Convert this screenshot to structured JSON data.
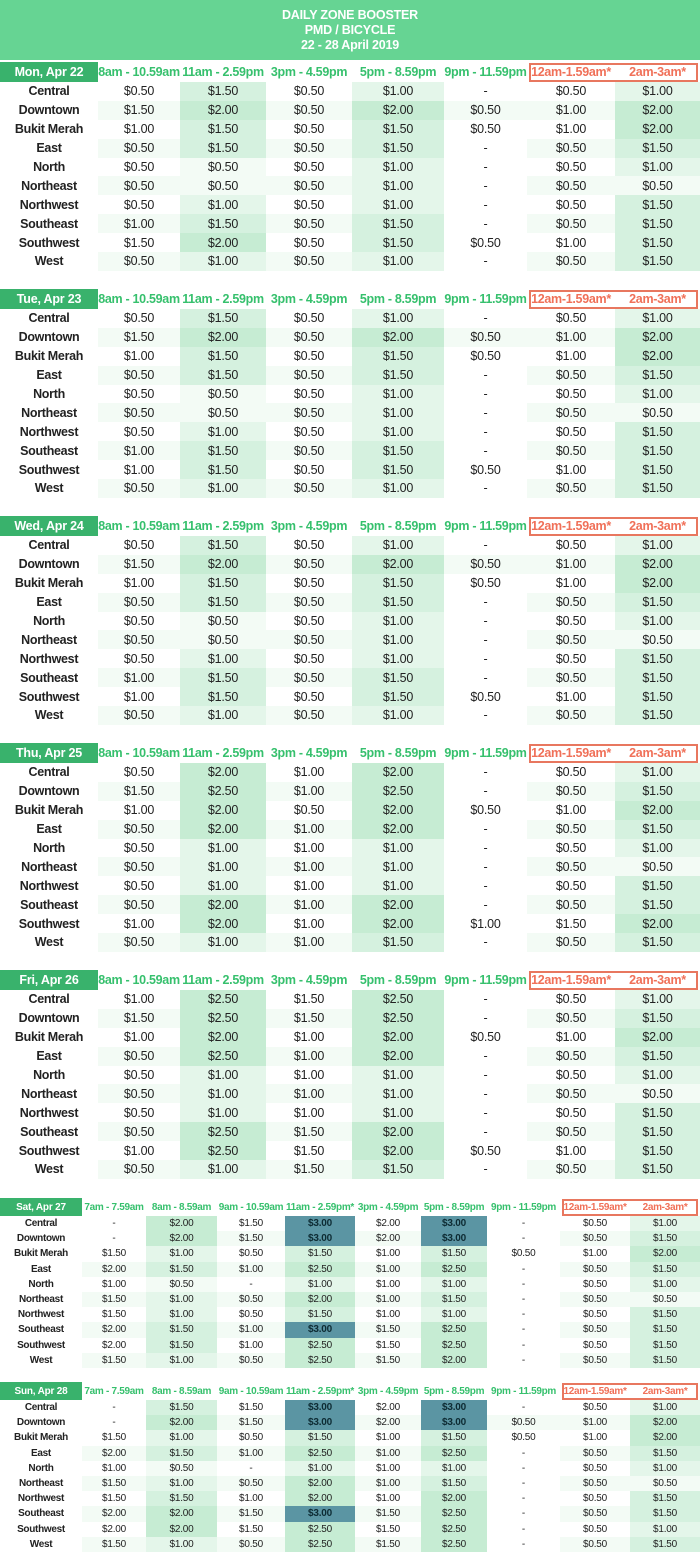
{
  "header": {
    "line1": "DAILY ZONE BOOSTER",
    "line2": "PMD / BICYCLE",
    "line3": "22 - 28 April 2019"
  },
  "late_columns": [
    "12am-1.59am*",
    "2am-3am*"
  ],
  "colors": {
    "header_bg": "#66d493",
    "day_label_bg": "#39b26c",
    "late_header": "#f07058",
    "peak_cell": "#5b95a3"
  },
  "zones": [
    "Central",
    "Downtown",
    "Bukit Merah",
    "East",
    "North",
    "Northeast",
    "Northwest",
    "Southeast",
    "Southwest",
    "West"
  ],
  "days": [
    {
      "label": "Mon, Apr 22",
      "slots": [
        "8am - 10.59am",
        "11am - 2.59pm",
        "3pm - 4.59pm",
        "5pm - 8.59pm",
        "9pm - 11.59pm",
        "12am-1.59am*",
        "2am-3am*"
      ],
      "rows": [
        [
          "$0.50",
          "$1.50",
          "$0.50",
          "$1.00",
          "-",
          "$0.50",
          "$1.00"
        ],
        [
          "$1.50",
          "$2.00",
          "$0.50",
          "$2.00",
          "$0.50",
          "$1.00",
          "$2.00"
        ],
        [
          "$1.00",
          "$1.50",
          "$0.50",
          "$1.50",
          "$0.50",
          "$1.00",
          "$2.00"
        ],
        [
          "$0.50",
          "$1.50",
          "$0.50",
          "$1.50",
          "-",
          "$0.50",
          "$1.50"
        ],
        [
          "$0.50",
          "$0.50",
          "$0.50",
          "$1.00",
          "-",
          "$0.50",
          "$1.00"
        ],
        [
          "$0.50",
          "$0.50",
          "$0.50",
          "$1.00",
          "-",
          "$0.50",
          "$0.50"
        ],
        [
          "$0.50",
          "$1.00",
          "$0.50",
          "$1.00",
          "-",
          "$0.50",
          "$1.50"
        ],
        [
          "$1.00",
          "$1.50",
          "$0.50",
          "$1.50",
          "-",
          "$0.50",
          "$1.50"
        ],
        [
          "$1.50",
          "$2.00",
          "$0.50",
          "$1.50",
          "$0.50",
          "$1.00",
          "$1.50"
        ],
        [
          "$0.50",
          "$1.00",
          "$0.50",
          "$1.00",
          "-",
          "$0.50",
          "$1.50"
        ]
      ]
    },
    {
      "label": "Tue, Apr 23",
      "slots": [
        "8am - 10.59am",
        "11am - 2.59pm",
        "3pm - 4.59pm",
        "5pm - 8.59pm",
        "9pm - 11.59pm",
        "12am-1.59am*",
        "2am-3am*"
      ],
      "rows": [
        [
          "$0.50",
          "$1.50",
          "$0.50",
          "$1.00",
          "-",
          "$0.50",
          "$1.00"
        ],
        [
          "$1.50",
          "$2.00",
          "$0.50",
          "$2.00",
          "$0.50",
          "$1.00",
          "$2.00"
        ],
        [
          "$1.00",
          "$1.50",
          "$0.50",
          "$1.50",
          "$0.50",
          "$1.00",
          "$2.00"
        ],
        [
          "$0.50",
          "$1.50",
          "$0.50",
          "$1.50",
          "-",
          "$0.50",
          "$1.50"
        ],
        [
          "$0.50",
          "$0.50",
          "$0.50",
          "$1.00",
          "-",
          "$0.50",
          "$1.00"
        ],
        [
          "$0.50",
          "$0.50",
          "$0.50",
          "$1.00",
          "-",
          "$0.50",
          "$0.50"
        ],
        [
          "$0.50",
          "$1.00",
          "$0.50",
          "$1.00",
          "-",
          "$0.50",
          "$1.50"
        ],
        [
          "$1.00",
          "$1.50",
          "$0.50",
          "$1.50",
          "-",
          "$0.50",
          "$1.50"
        ],
        [
          "$1.00",
          "$1.50",
          "$0.50",
          "$1.50",
          "$0.50",
          "$1.00",
          "$1.50"
        ],
        [
          "$0.50",
          "$1.00",
          "$0.50",
          "$1.00",
          "-",
          "$0.50",
          "$1.50"
        ]
      ]
    },
    {
      "label": "Wed, Apr 24",
      "slots": [
        "8am - 10.59am",
        "11am - 2.59pm",
        "3pm - 4.59pm",
        "5pm - 8.59pm",
        "9pm - 11.59pm",
        "12am-1.59am*",
        "2am-3am*"
      ],
      "rows": [
        [
          "$0.50",
          "$1.50",
          "$0.50",
          "$1.00",
          "-",
          "$0.50",
          "$1.00"
        ],
        [
          "$1.50",
          "$2.00",
          "$0.50",
          "$2.00",
          "$0.50",
          "$1.00",
          "$2.00"
        ],
        [
          "$1.00",
          "$1.50",
          "$0.50",
          "$1.50",
          "$0.50",
          "$1.00",
          "$2.00"
        ],
        [
          "$0.50",
          "$1.50",
          "$0.50",
          "$1.50",
          "-",
          "$0.50",
          "$1.50"
        ],
        [
          "$0.50",
          "$0.50",
          "$0.50",
          "$1.00",
          "-",
          "$0.50",
          "$1.00"
        ],
        [
          "$0.50",
          "$0.50",
          "$0.50",
          "$1.00",
          "-",
          "$0.50",
          "$0.50"
        ],
        [
          "$0.50",
          "$1.00",
          "$0.50",
          "$1.00",
          "-",
          "$0.50",
          "$1.50"
        ],
        [
          "$1.00",
          "$1.50",
          "$0.50",
          "$1.50",
          "-",
          "$0.50",
          "$1.50"
        ],
        [
          "$1.00",
          "$1.50",
          "$0.50",
          "$1.50",
          "$0.50",
          "$1.00",
          "$1.50"
        ],
        [
          "$0.50",
          "$1.00",
          "$0.50",
          "$1.00",
          "-",
          "$0.50",
          "$1.50"
        ]
      ]
    },
    {
      "label": "Thu, Apr 25",
      "slots": [
        "8am - 10.59am",
        "11am - 2.59pm",
        "3pm - 4.59pm",
        "5pm - 8.59pm",
        "9pm - 11.59pm",
        "12am-1.59am*",
        "2am-3am*"
      ],
      "rows": [
        [
          "$0.50",
          "$2.00",
          "$1.00",
          "$2.00",
          "-",
          "$0.50",
          "$1.00"
        ],
        [
          "$1.50",
          "$2.50",
          "$1.00",
          "$2.50",
          "-",
          "$0.50",
          "$1.50"
        ],
        [
          "$1.00",
          "$2.00",
          "$0.50",
          "$2.00",
          "$0.50",
          "$1.00",
          "$2.00"
        ],
        [
          "$0.50",
          "$2.00",
          "$1.00",
          "$2.00",
          "-",
          "$0.50",
          "$1.50"
        ],
        [
          "$0.50",
          "$1.00",
          "$1.00",
          "$1.00",
          "-",
          "$0.50",
          "$1.00"
        ],
        [
          "$0.50",
          "$1.00",
          "$1.00",
          "$1.00",
          "-",
          "$0.50",
          "$0.50"
        ],
        [
          "$0.50",
          "$1.00",
          "$1.00",
          "$1.00",
          "-",
          "$0.50",
          "$1.50"
        ],
        [
          "$0.50",
          "$2.00",
          "$1.00",
          "$2.00",
          "-",
          "$0.50",
          "$1.50"
        ],
        [
          "$1.00",
          "$2.00",
          "$1.00",
          "$2.00",
          "$1.00",
          "$1.50",
          "$2.00"
        ],
        [
          "$0.50",
          "$1.00",
          "$1.00",
          "$1.50",
          "-",
          "$0.50",
          "$1.50"
        ]
      ]
    },
    {
      "label": "Fri, Apr 26",
      "slots": [
        "8am - 10.59am",
        "11am - 2.59pm",
        "3pm - 4.59pm",
        "5pm - 8.59pm",
        "9pm - 11.59pm",
        "12am-1.59am*",
        "2am-3am*"
      ],
      "rows": [
        [
          "$1.00",
          "$2.50",
          "$1.50",
          "$2.50",
          "-",
          "$0.50",
          "$1.00"
        ],
        [
          "$1.50",
          "$2.50",
          "$1.50",
          "$2.50",
          "-",
          "$0.50",
          "$1.50"
        ],
        [
          "$1.00",
          "$2.00",
          "$1.00",
          "$2.00",
          "$0.50",
          "$1.00",
          "$2.00"
        ],
        [
          "$0.50",
          "$2.50",
          "$1.00",
          "$2.00",
          "-",
          "$0.50",
          "$1.50"
        ],
        [
          "$0.50",
          "$1.00",
          "$1.00",
          "$1.00",
          "-",
          "$0.50",
          "$1.00"
        ],
        [
          "$0.50",
          "$1.00",
          "$1.00",
          "$1.00",
          "-",
          "$0.50",
          "$0.50"
        ],
        [
          "$0.50",
          "$1.00",
          "$1.00",
          "$1.00",
          "-",
          "$0.50",
          "$1.50"
        ],
        [
          "$0.50",
          "$2.50",
          "$1.50",
          "$2.00",
          "-",
          "$0.50",
          "$1.50"
        ],
        [
          "$1.00",
          "$2.50",
          "$1.50",
          "$2.00",
          "$0.50",
          "$1.00",
          "$1.50"
        ],
        [
          "$0.50",
          "$1.00",
          "$1.50",
          "$1.50",
          "-",
          "$0.50",
          "$1.50"
        ]
      ]
    },
    {
      "label": "Sat, Apr 27",
      "slots": [
        "7am - 7.59am",
        "8am - 8.59am",
        "9am - 10.59am",
        "11am - 2.59pm*",
        "3pm - 4.59pm",
        "5pm - 8.59pm",
        "9pm - 11.59pm",
        "12am-1.59am*",
        "2am-3am*"
      ],
      "rows": [
        [
          "-",
          "$2.00",
          "$1.50",
          "$3.00",
          "$2.00",
          "$3.00",
          "-",
          "$0.50",
          "$1.00"
        ],
        [
          "-",
          "$2.00",
          "$1.50",
          "$3.00",
          "$2.00",
          "$3.00",
          "-",
          "$0.50",
          "$1.50"
        ],
        [
          "$1.50",
          "$1.00",
          "$0.50",
          "$1.50",
          "$1.00",
          "$1.50",
          "$0.50",
          "$1.00",
          "$2.00"
        ],
        [
          "$2.00",
          "$1.50",
          "$1.00",
          "$2.50",
          "$1.00",
          "$2.50",
          "-",
          "$0.50",
          "$1.50"
        ],
        [
          "$1.00",
          "$0.50",
          "-",
          "$1.00",
          "$1.00",
          "$1.00",
          "-",
          "$0.50",
          "$1.00"
        ],
        [
          "$1.50",
          "$1.00",
          "$0.50",
          "$2.00",
          "$1.00",
          "$1.50",
          "-",
          "$0.50",
          "$0.50"
        ],
        [
          "$1.50",
          "$1.00",
          "$0.50",
          "$1.50",
          "$1.00",
          "$1.00",
          "-",
          "$0.50",
          "$1.50"
        ],
        [
          "$2.00",
          "$1.50",
          "$1.00",
          "$3.00",
          "$1.50",
          "$2.50",
          "-",
          "$0.50",
          "$1.50"
        ],
        [
          "$2.00",
          "$1.50",
          "$1.00",
          "$2.50",
          "$1.50",
          "$2.50",
          "-",
          "$0.50",
          "$1.50"
        ],
        [
          "$1.50",
          "$1.00",
          "$0.50",
          "$2.50",
          "$1.50",
          "$2.00",
          "-",
          "$0.50",
          "$1.50"
        ]
      ]
    },
    {
      "label": "Sun, Apr 28",
      "slots": [
        "7am - 7.59am",
        "8am - 8.59am",
        "9am - 10.59am",
        "11am - 2.59pm*",
        "3pm - 4.59pm",
        "5pm - 8.59pm",
        "9pm - 11.59pm",
        "12am-1.59am*",
        "2am-3am*"
      ],
      "rows": [
        [
          "-",
          "$1.50",
          "$1.50",
          "$3.00",
          "$2.00",
          "$3.00",
          "-",
          "$0.50",
          "$1.00"
        ],
        [
          "-",
          "$2.00",
          "$1.50",
          "$3.00",
          "$2.00",
          "$3.00",
          "$0.50",
          "$1.00",
          "$2.00"
        ],
        [
          "$1.50",
          "$1.00",
          "$0.50",
          "$1.50",
          "$1.00",
          "$1.50",
          "$0.50",
          "$1.00",
          "$2.00"
        ],
        [
          "$2.00",
          "$1.50",
          "$1.00",
          "$2.50",
          "$1.00",
          "$2.50",
          "-",
          "$0.50",
          "$1.50"
        ],
        [
          "$1.00",
          "$0.50",
          "-",
          "$1.00",
          "$1.00",
          "$1.00",
          "-",
          "$0.50",
          "$1.00"
        ],
        [
          "$1.50",
          "$1.00",
          "$0.50",
          "$2.00",
          "$1.00",
          "$1.50",
          "-",
          "$0.50",
          "$0.50"
        ],
        [
          "$1.50",
          "$1.50",
          "$1.00",
          "$2.00",
          "$1.00",
          "$2.00",
          "-",
          "$0.50",
          "$1.50"
        ],
        [
          "$2.00",
          "$2.00",
          "$1.50",
          "$3.00",
          "$1.50",
          "$2.50",
          "-",
          "$0.50",
          "$1.50"
        ],
        [
          "$2.00",
          "$2.00",
          "$1.50",
          "$2.50",
          "$1.50",
          "$2.50",
          "-",
          "$0.50",
          "$1.00"
        ],
        [
          "$1.50",
          "$1.00",
          "$0.50",
          "$2.50",
          "$1.50",
          "$2.50",
          "-",
          "$0.50",
          "$1.50"
        ]
      ]
    }
  ]
}
